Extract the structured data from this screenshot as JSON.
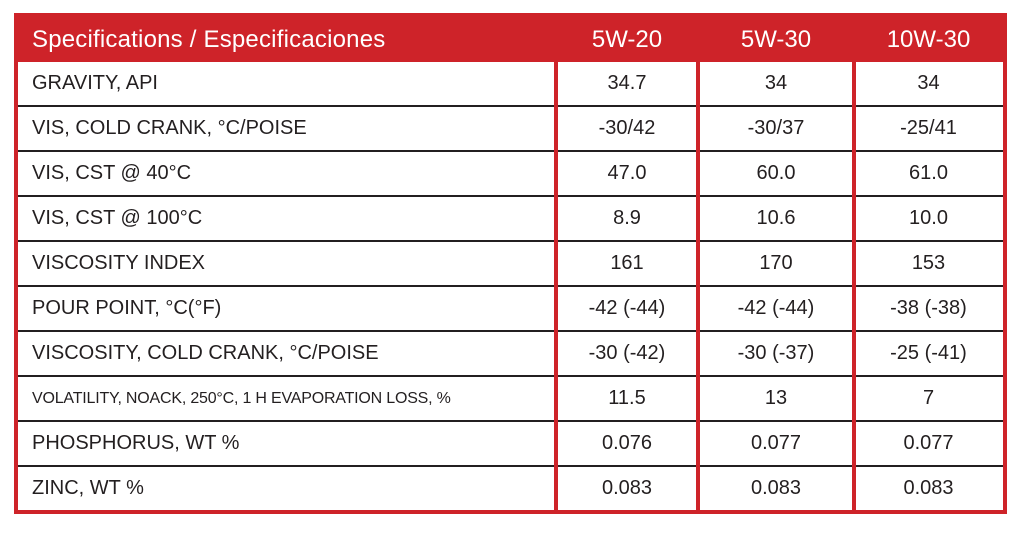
{
  "colors": {
    "header-bg": "#CE2329",
    "divider-red": "#CE2329",
    "row-line": "#231F20",
    "header-text": "#FFFFFF",
    "body-text": "#231F20",
    "page-bg": "#FFFFFF"
  },
  "table": {
    "title": "Specifications / Especificaciones",
    "columns": [
      "5W-20",
      "5W-30",
      "10W-30"
    ],
    "rows": [
      {
        "label": "GRAVITY, API",
        "values": [
          "34.7",
          "34",
          "34"
        ],
        "small": false
      },
      {
        "label": "VIS, COLD CRANK, °C/POISE",
        "values": [
          "-30/42",
          "-30/37",
          "-25/41"
        ],
        "small": false
      },
      {
        "label": "VIS, CST @ 40°C",
        "values": [
          "47.0",
          "60.0",
          "61.0"
        ],
        "small": false
      },
      {
        "label": "VIS, CST @ 100°C",
        "values": [
          "8.9",
          "10.6",
          "10.0"
        ],
        "small": false
      },
      {
        "label": "VISCOSITY INDEX",
        "values": [
          "161",
          "170",
          "153"
        ],
        "small": false
      },
      {
        "label": "POUR POINT, °C(°F)",
        "values": [
          "-42 (-44)",
          "-42 (-44)",
          "-38 (-38)"
        ],
        "small": false
      },
      {
        "label": "VISCOSITY, COLD CRANK, °C/POISE",
        "values": [
          "-30 (-42)",
          "-30 (-37)",
          "-25 (-41)"
        ],
        "small": false
      },
      {
        "label": "VOLATILITY, NOACK, 250°C, 1 H EVAPORATION LOSS, %",
        "values": [
          "11.5",
          "13",
          "7"
        ],
        "small": true
      },
      {
        "label": "PHOSPHORUS, WT %",
        "values": [
          "0.076",
          "0.077",
          "0.077"
        ],
        "small": false
      },
      {
        "label": "ZINC, WT %",
        "values": [
          "0.083",
          "0.083",
          "0.083"
        ],
        "small": false
      }
    ]
  },
  "chart_data": {
    "type": "table",
    "title": "Specifications / Especificaciones",
    "categories": [
      "5W-20",
      "5W-30",
      "10W-30"
    ],
    "series": [
      {
        "name": "GRAVITY, API",
        "values": [
          "34.7",
          "34",
          "34"
        ]
      },
      {
        "name": "VIS, COLD CRANK, °C/POISE",
        "values": [
          "-30/42",
          "-30/37",
          "-25/41"
        ]
      },
      {
        "name": "VIS, CST @ 40°C",
        "values": [
          "47.0",
          "60.0",
          "61.0"
        ]
      },
      {
        "name": "VIS, CST @ 100°C",
        "values": [
          "8.9",
          "10.6",
          "10.0"
        ]
      },
      {
        "name": "VISCOSITY INDEX",
        "values": [
          "161",
          "170",
          "153"
        ]
      },
      {
        "name": "POUR POINT, °C(°F)",
        "values": [
          "-42 (-44)",
          "-42 (-44)",
          "-38 (-38)"
        ]
      },
      {
        "name": "VISCOSITY, COLD CRANK, °C/POISE",
        "values": [
          "-30 (-42)",
          "-30 (-37)",
          "-25 (-41)"
        ]
      },
      {
        "name": "VOLATILITY, NOACK, 250°C, 1 H EVAPORATION LOSS, %",
        "values": [
          "11.5",
          "13",
          "7"
        ]
      },
      {
        "name": "PHOSPHORUS, WT %",
        "values": [
          "0.076",
          "0.077",
          "0.077"
        ]
      },
      {
        "name": "ZINC, WT %",
        "values": [
          "0.083",
          "0.083",
          "0.083"
        ]
      }
    ]
  }
}
